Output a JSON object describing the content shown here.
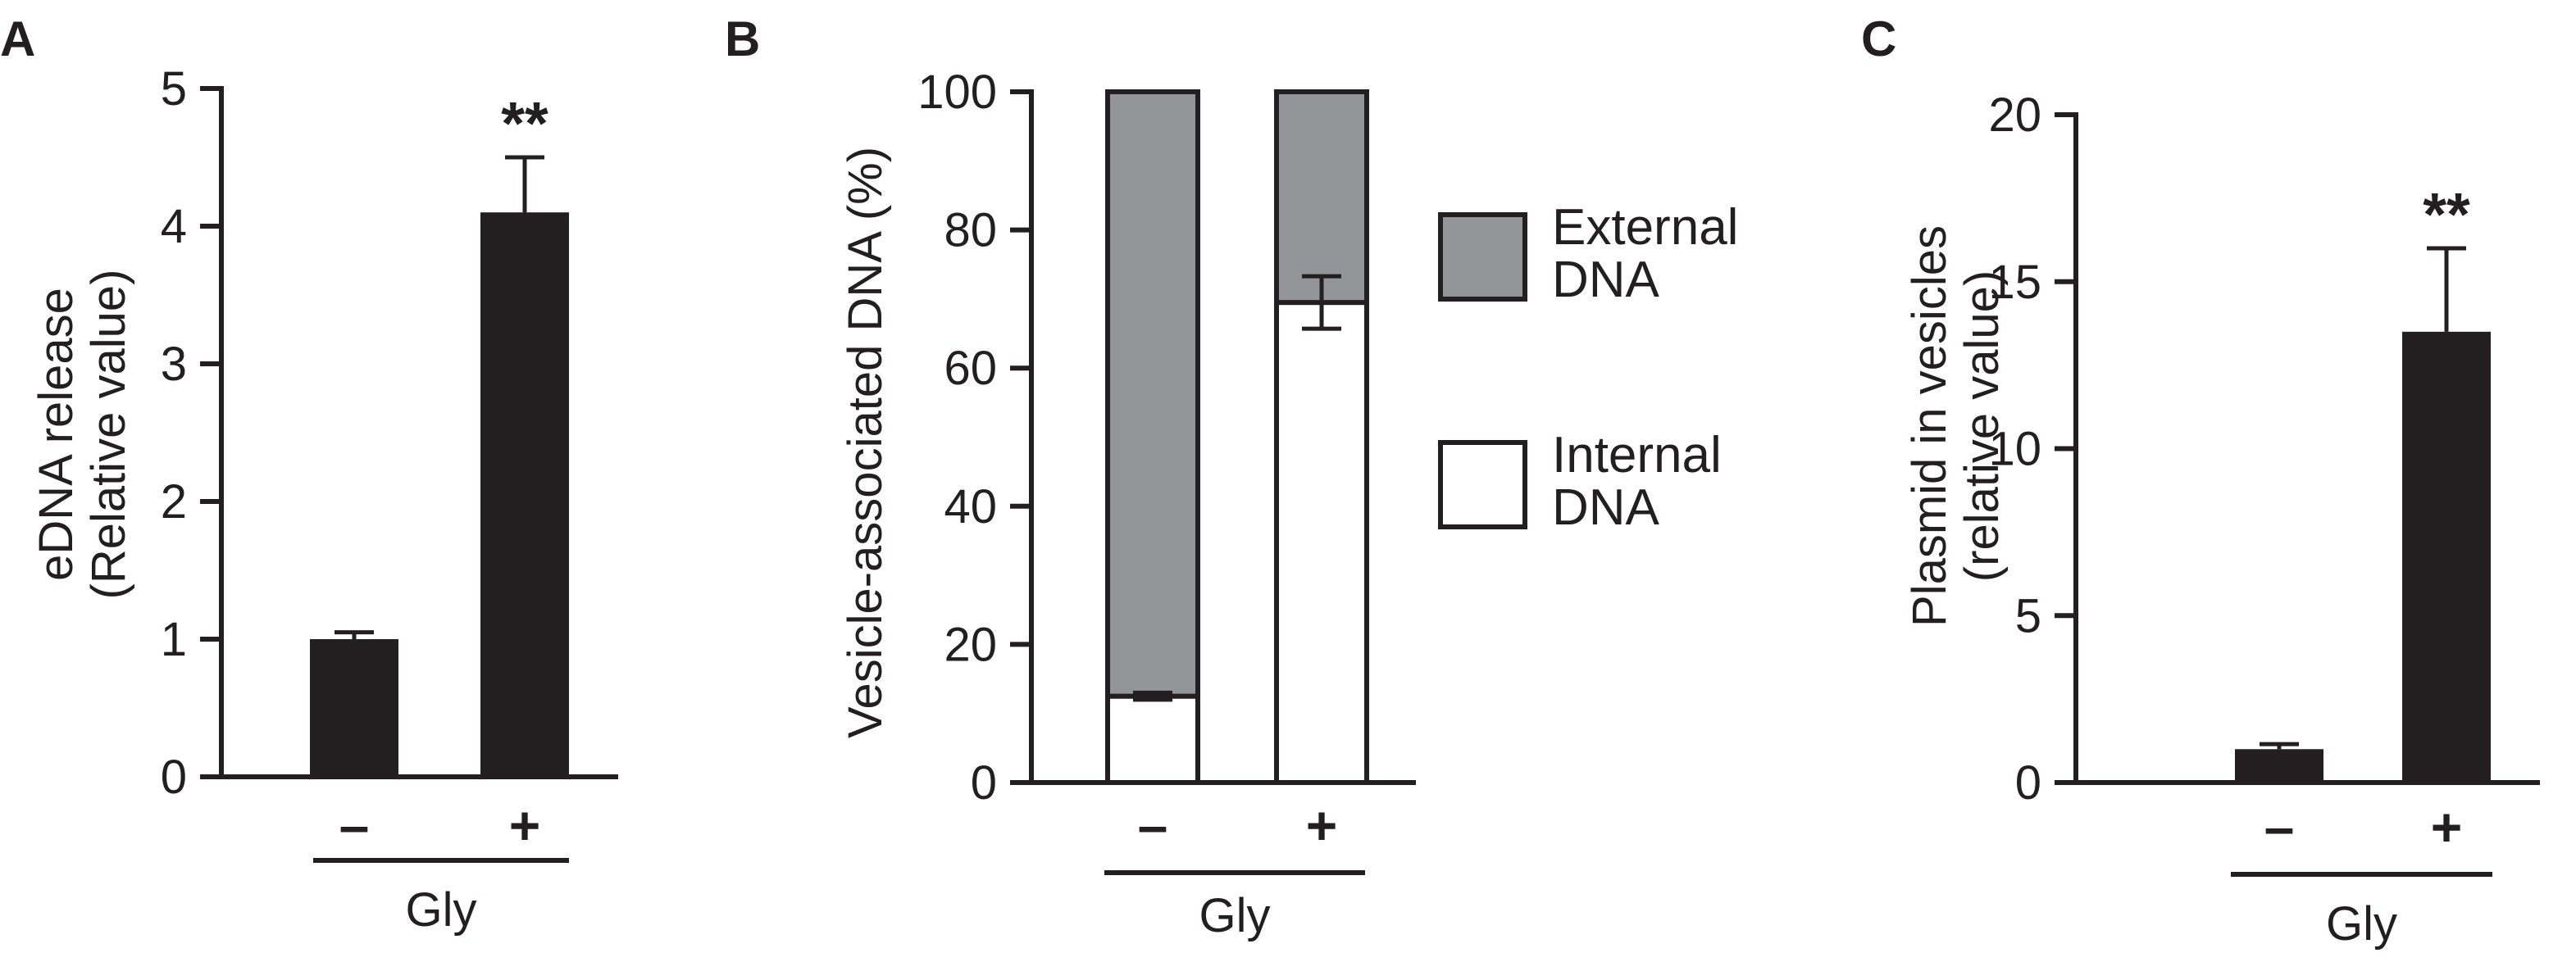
{
  "colors": {
    "bar_dark": "#231f20",
    "external_fill": "#939598",
    "internal_fill": "#ffffff",
    "line": "#231f20"
  },
  "chart_data": [
    {
      "panel": "A",
      "type": "bar",
      "ylabel_lines": [
        "eDNA release",
        "(Relative value)"
      ],
      "ylim": [
        0,
        5
      ],
      "yticks": [
        0,
        1,
        2,
        3,
        4,
        5
      ],
      "categories": [
        "–",
        "+"
      ],
      "values": [
        1.0,
        4.1
      ],
      "errors": [
        0.05,
        0.4
      ],
      "significance": [
        "",
        "**"
      ],
      "group_label": "Gly"
    },
    {
      "panel": "B",
      "type": "bar",
      "stacked": true,
      "ylabel_lines": [
        "Vesicle-associated DNA (%)"
      ],
      "ylim": [
        0,
        100
      ],
      "yticks": [
        0,
        20,
        40,
        60,
        80,
        100
      ],
      "categories": [
        "–",
        "+"
      ],
      "series": [
        {
          "name": "Internal DNA",
          "legend_lines": [
            "Internal",
            "DNA"
          ],
          "values": [
            12.5,
            69.5
          ],
          "errors": [
            0.5,
            3.8
          ]
        },
        {
          "name": "External DNA",
          "legend_lines": [
            "External",
            "DNA"
          ],
          "values": [
            87.5,
            30.5
          ]
        }
      ],
      "group_label": "Gly",
      "legend_placement": "right"
    },
    {
      "panel": "C",
      "type": "bar",
      "ylabel_lines": [
        "Plasmid in vesicles",
        "(relative value)"
      ],
      "ylim": [
        0,
        20
      ],
      "yticks": [
        0,
        5,
        10,
        15,
        20
      ],
      "categories": [
        "–",
        "+"
      ],
      "values": [
        1.0,
        13.5
      ],
      "errors": [
        0.15,
        2.5
      ],
      "significance": [
        "",
        "**"
      ],
      "group_label": "Gly"
    }
  ]
}
